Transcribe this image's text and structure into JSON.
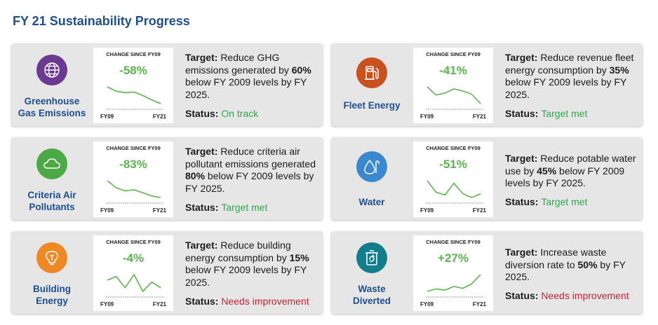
{
  "page_title": "FY 21 Sustainability Progress",
  "chart_header": "CHANGE SINCE FY09",
  "axis_start": "FY09",
  "axis_end": "FY21",
  "target_label": "Target:",
  "status_label": "Status:",
  "colors": {
    "title": "#1d4f91",
    "positive": "#5bb54d",
    "status_good": "#2ea84a",
    "status_bad": "#c52433",
    "purple": "#6a3a92",
    "green": "#4caa46",
    "orange": "#ee8823",
    "dark_orange": "#c9511d",
    "blue": "#3889cf",
    "teal": "#127e8c"
  },
  "cards": [
    {
      "category_lines": [
        "Greenhouse",
        "Gas Emissions"
      ],
      "icon": "globe-icon",
      "change": "-58%",
      "target_parts": [
        "Reduce GHG emissions generated by ",
        "60%",
        " below FY 2009 levels by FY 2025."
      ],
      "status": "On track",
      "status_type": "good",
      "trend": [
        100,
        85,
        80,
        82,
        70,
        55,
        42
      ]
    },
    {
      "category_lines": [
        "Fleet Energy"
      ],
      "icon": "fuel-pump-icon",
      "change": "-41%",
      "target_parts": [
        "Reduce revenue fleet energy consumption by ",
        "35%",
        " below FY 2009 levels by FY 2025."
      ],
      "status": "Target met",
      "status_type": "good",
      "trend": [
        100,
        80,
        85,
        95,
        90,
        82,
        59
      ]
    },
    {
      "category_lines": [
        "Criteria Air",
        "Pollutants"
      ],
      "icon": "cloud-icon",
      "change": "-83%",
      "target_parts": [
        "Reduce criteria air pollutant emissions generated ",
        "80%",
        " below FY 2009 levels by FY 2025."
      ],
      "status": "Target met",
      "status_type": "good",
      "trend": [
        100,
        65,
        50,
        55,
        40,
        25,
        17
      ]
    },
    {
      "category_lines": [
        "Water"
      ],
      "icon": "water-drop-icon",
      "change": "-51%",
      "target_parts": [
        "Reduce potable water use by ",
        "45%",
        " below FY 2009 levels by FY 2025."
      ],
      "status": "Target met",
      "status_type": "good",
      "trend": [
        100,
        55,
        45,
        90,
        50,
        35,
        49
      ]
    },
    {
      "category_lines": [
        "Building",
        "Energy"
      ],
      "icon": "lightbulb-icon",
      "change": "-4%",
      "target_parts": [
        "Reduce building energy consumption by ",
        "15%",
        " below FY 2009 levels by FY 2025."
      ],
      "status": "Needs improvement",
      "status_type": "bad",
      "trend": [
        100,
        102,
        96,
        103,
        94,
        99,
        96
      ]
    },
    {
      "category_lines": [
        "Waste",
        "Diverted"
      ],
      "icon": "recycle-bin-icon",
      "change": "+27%",
      "target_parts": [
        "Increase waste diversion rate to ",
        "50%",
        " by FY 2025."
      ],
      "status": "Needs improvement",
      "status_type": "bad",
      "trend": [
        100,
        104,
        102,
        108,
        105,
        112,
        127
      ]
    }
  ]
}
